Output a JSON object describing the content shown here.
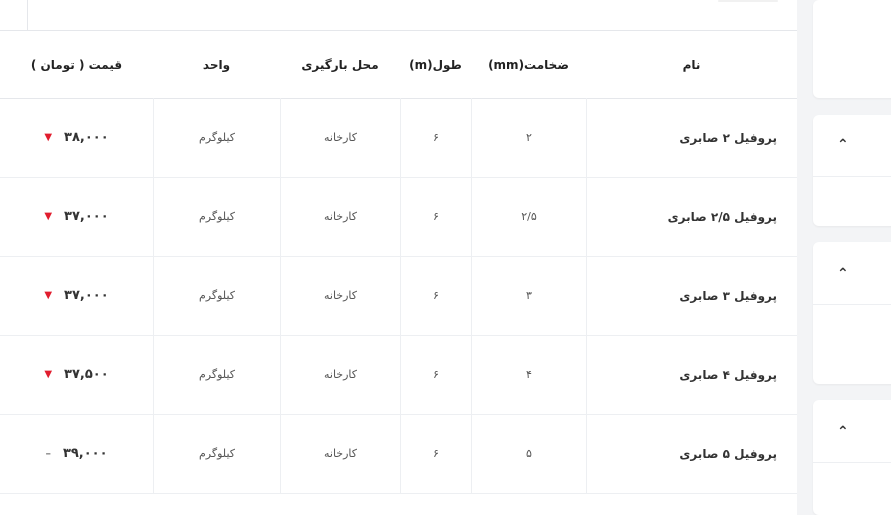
{
  "table": {
    "headers": {
      "name": "نام",
      "thickness": "ضخامت(mm)",
      "length": "طول(m)",
      "location": "محل بارگیری",
      "unit": "واحد",
      "price": "قیمت ( تومان )"
    },
    "rows": [
      {
        "name": "پروفیل ۲ صابری",
        "thickness": "۲",
        "length": "۶",
        "location": "کارخانه",
        "unit": "کیلوگرم",
        "price": "۳۸,۰۰۰",
        "trend": "▼"
      },
      {
        "name": "پروفیل ۲/۵ صابری",
        "thickness": "۲/۵",
        "length": "۶",
        "location": "کارخانه",
        "unit": "کیلوگرم",
        "price": "۳۷,۰۰۰",
        "trend": "▼"
      },
      {
        "name": "پروفیل ۳ صابری",
        "thickness": "۳",
        "length": "۶",
        "location": "کارخانه",
        "unit": "کیلوگرم",
        "price": "۳۷,۰۰۰",
        "trend": "▼"
      },
      {
        "name": "پروفیل ۴ صابری",
        "thickness": "۴",
        "length": "۶",
        "location": "کارخانه",
        "unit": "کیلوگرم",
        "price": "۳۷,۵۰۰",
        "trend": "▼"
      },
      {
        "name": "پروفیل ۵ صابری",
        "thickness": "۵",
        "length": "۶",
        "location": "کارخانه",
        "unit": "کیلوگرم",
        "price": "۳۹,۰۰۰",
        "trend": "–"
      }
    ]
  },
  "sidebar": {
    "chevron": "⌃"
  },
  "colors": {
    "down": "#e11d2e",
    "neutral": "#888888"
  }
}
